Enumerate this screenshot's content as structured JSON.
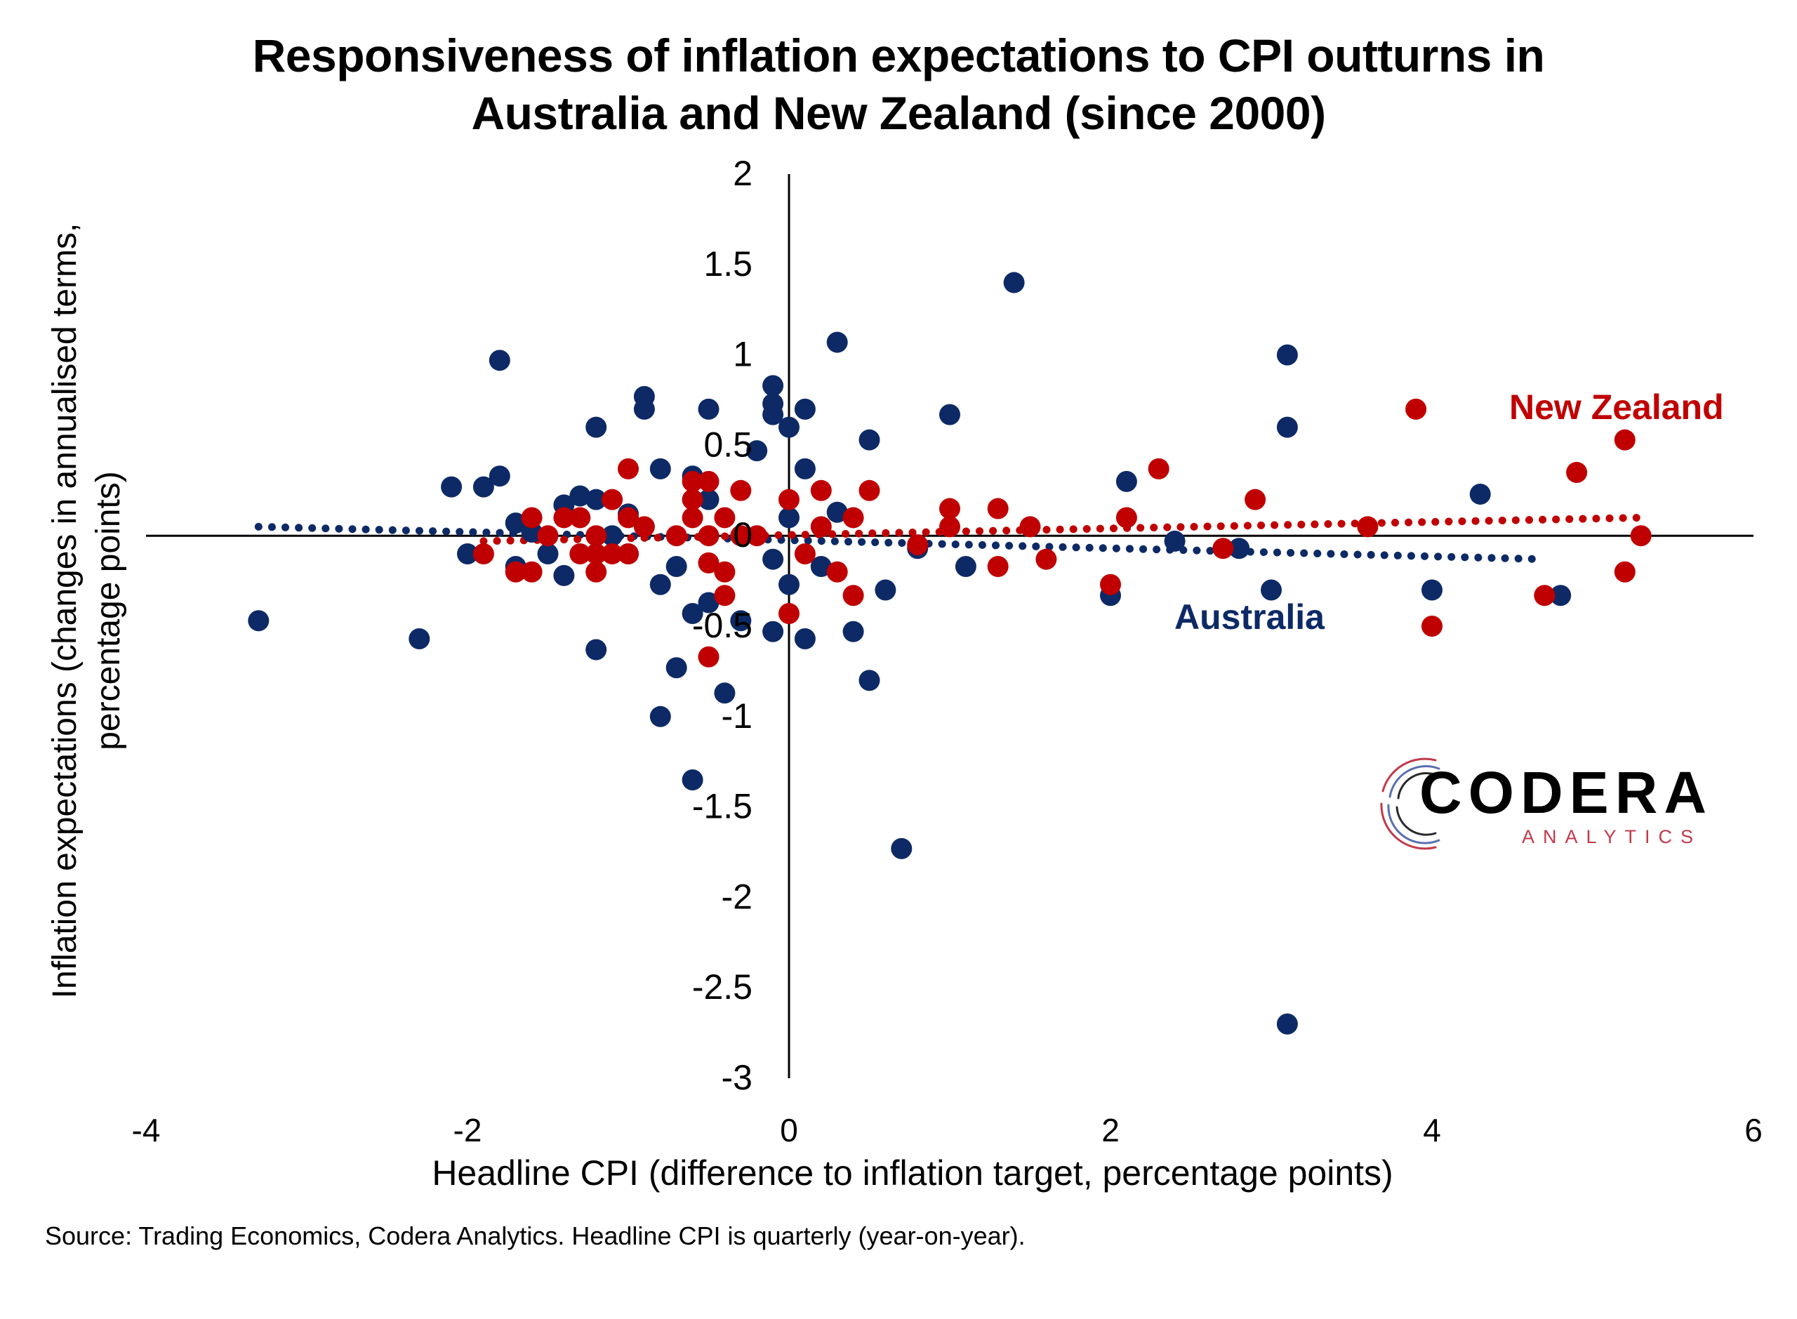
{
  "chart_data": {
    "type": "scatter",
    "title": [
      "Responsiveness of inflation expectations to CPI outturns in",
      "Australia and New Zealand (since 2000)"
    ],
    "xlabel": "Headline CPI (difference to inflation target, percentage points)",
    "ylabel": [
      "Inflation expectations (changes in annualised terms,",
      "percentage points)"
    ],
    "xlim": [
      -4,
      6
    ],
    "ylim": [
      -3,
      2
    ],
    "x_ticks": [
      "-4",
      "-2",
      "0",
      "2",
      "4",
      "6"
    ],
    "y_ticks": [
      "2",
      "1.5",
      "1",
      "0.5",
      "0",
      "-0.5",
      "-1",
      "-1.5",
      "-2",
      "-2.5",
      "-3"
    ],
    "x_tick_values": [
      -4,
      -2,
      0,
      2,
      4,
      6
    ],
    "y_tick_values": [
      2,
      1.5,
      1,
      0.5,
      0,
      -0.5,
      -1,
      -1.5,
      -2,
      -2.5,
      -3
    ],
    "grid": false,
    "series": [
      {
        "name": "Australia",
        "color": "#0d2a66",
        "points": [
          [
            -3.3,
            -0.47
          ],
          [
            -2.3,
            -0.57
          ],
          [
            -1.8,
            0.97
          ],
          [
            -2.1,
            0.27
          ],
          [
            -1.9,
            0.27
          ],
          [
            -1.8,
            0.33
          ],
          [
            -2.0,
            -0.1
          ],
          [
            -1.7,
            0.07
          ],
          [
            -1.7,
            -0.17
          ],
          [
            -1.6,
            0.02
          ],
          [
            -1.5,
            -0.1
          ],
          [
            -1.4,
            0.17
          ],
          [
            -1.3,
            0.22
          ],
          [
            -1.4,
            -0.22
          ],
          [
            -1.2,
            0.6
          ],
          [
            -1.2,
            -0.63
          ],
          [
            -1.2,
            0.2
          ],
          [
            -1.1,
            0.0
          ],
          [
            -1.0,
            0.12
          ],
          [
            -1.0,
            -0.1
          ],
          [
            -0.9,
            0.77
          ],
          [
            -0.9,
            0.7
          ],
          [
            -0.8,
            0.37
          ],
          [
            -0.8,
            -0.27
          ],
          [
            -0.8,
            -1.0
          ],
          [
            -0.7,
            -0.17
          ],
          [
            -0.7,
            -0.73
          ],
          [
            -0.6,
            -0.43
          ],
          [
            -0.6,
            -1.35
          ],
          [
            -0.6,
            0.33
          ],
          [
            -0.5,
            0.7
          ],
          [
            -0.5,
            0.2
          ],
          [
            -0.5,
            -0.37
          ],
          [
            -0.4,
            -0.87
          ],
          [
            -0.3,
            -0.47
          ],
          [
            -0.2,
            0.47
          ],
          [
            -0.1,
            0.83
          ],
          [
            -0.1,
            0.73
          ],
          [
            -0.1,
            0.67
          ],
          [
            -0.1,
            -0.13
          ],
          [
            -0.1,
            -0.53
          ],
          [
            0.0,
            0.6
          ],
          [
            0.0,
            -0.27
          ],
          [
            0.0,
            0.1
          ],
          [
            0.1,
            0.7
          ],
          [
            0.1,
            0.37
          ],
          [
            0.1,
            -0.57
          ],
          [
            0.2,
            -0.17
          ],
          [
            0.3,
            1.07
          ],
          [
            0.3,
            0.13
          ],
          [
            0.4,
            -0.53
          ],
          [
            0.5,
            0.53
          ],
          [
            0.5,
            -0.8
          ],
          [
            0.6,
            -0.3
          ],
          [
            0.7,
            -1.73
          ],
          [
            0.8,
            -0.07
          ],
          [
            1.0,
            0.67
          ],
          [
            1.1,
            -0.17
          ],
          [
            1.4,
            1.4
          ],
          [
            2.0,
            -0.33
          ],
          [
            2.1,
            0.3
          ],
          [
            2.4,
            -0.03
          ],
          [
            2.8,
            -0.07
          ],
          [
            3.0,
            -0.3
          ],
          [
            3.1,
            1.0
          ],
          [
            3.1,
            0.6
          ],
          [
            3.1,
            -2.7
          ],
          [
            4.0,
            -0.3
          ],
          [
            4.3,
            0.23
          ],
          [
            4.8,
            -0.33
          ]
        ],
        "trend": [
          [
            -3.3,
            0.05
          ],
          [
            4.7,
            -0.13
          ]
        ]
      },
      {
        "name": "New Zealand",
        "color": "#c00000",
        "points": [
          [
            -1.9,
            -0.1
          ],
          [
            -1.7,
            -0.2
          ],
          [
            -1.6,
            0.1
          ],
          [
            -1.6,
            -0.2
          ],
          [
            -1.5,
            0.0
          ],
          [
            -1.4,
            0.1
          ],
          [
            -1.3,
            0.1
          ],
          [
            -1.3,
            -0.1
          ],
          [
            -1.2,
            -0.2
          ],
          [
            -1.2,
            -0.1
          ],
          [
            -1.2,
            0.0
          ],
          [
            -1.1,
            -0.1
          ],
          [
            -1.1,
            0.2
          ],
          [
            -1.0,
            0.37
          ],
          [
            -1.0,
            -0.1
          ],
          [
            -1.0,
            0.1
          ],
          [
            -0.9,
            0.05
          ],
          [
            -0.7,
            0.0
          ],
          [
            -0.6,
            0.3
          ],
          [
            -0.6,
            0.2
          ],
          [
            -0.6,
            0.1
          ],
          [
            -0.5,
            0.3
          ],
          [
            -0.5,
            0.0
          ],
          [
            -0.5,
            -0.15
          ],
          [
            -0.5,
            -0.67
          ],
          [
            -0.4,
            0.1
          ],
          [
            -0.4,
            -0.2
          ],
          [
            -0.4,
            -0.33
          ],
          [
            -0.3,
            0.0
          ],
          [
            -0.3,
            0.25
          ],
          [
            -0.2,
            0.0
          ],
          [
            0.0,
            0.2
          ],
          [
            0.0,
            -0.43
          ],
          [
            0.1,
            -0.1
          ],
          [
            0.2,
            0.25
          ],
          [
            0.2,
            0.05
          ],
          [
            0.3,
            -0.2
          ],
          [
            0.4,
            -0.33
          ],
          [
            0.4,
            0.1
          ],
          [
            0.5,
            0.25
          ],
          [
            0.8,
            -0.05
          ],
          [
            1.0,
            0.15
          ],
          [
            1.0,
            0.05
          ],
          [
            1.3,
            0.15
          ],
          [
            1.3,
            -0.17
          ],
          [
            1.5,
            0.05
          ],
          [
            1.6,
            -0.13
          ],
          [
            2.0,
            -0.27
          ],
          [
            2.1,
            0.1
          ],
          [
            2.3,
            0.37
          ],
          [
            2.7,
            -0.07
          ],
          [
            2.9,
            0.2
          ],
          [
            3.6,
            0.05
          ],
          [
            3.9,
            0.7
          ],
          [
            4.0,
            -0.5
          ],
          [
            4.7,
            -0.33
          ],
          [
            4.9,
            0.35
          ],
          [
            5.2,
            0.53
          ],
          [
            5.2,
            -0.2
          ],
          [
            5.3,
            0.0
          ]
        ],
        "trend": [
          [
            -1.9,
            -0.03
          ],
          [
            5.3,
            0.1
          ]
        ]
      }
    ],
    "annotations": [
      "New Zealand",
      "Australia"
    ]
  },
  "source_note": "Source: Trading Economics, Codera Analytics. Headline CPI is quarterly (year-on-year).",
  "logo": {
    "word": "CODERA",
    "sub": "ANALYTICS"
  }
}
